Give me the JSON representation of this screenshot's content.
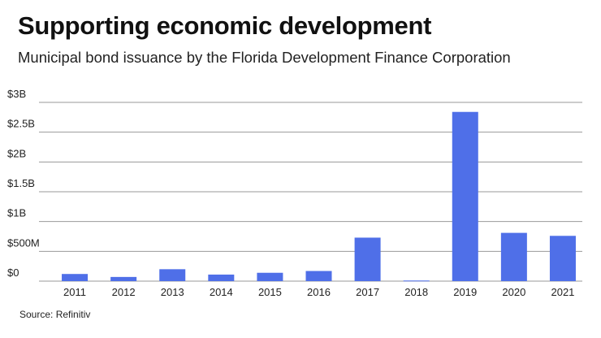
{
  "chart_data": {
    "type": "bar",
    "title": "Supporting economic development",
    "subtitle": "Municipal bond issuance by the Florida Development Finance Corporation",
    "source": "Source: Refinitiv",
    "categories": [
      "2011",
      "2012",
      "2013",
      "2014",
      "2015",
      "2016",
      "2017",
      "2018",
      "2019",
      "2020",
      "2021"
    ],
    "values": [
      0.12,
      0.07,
      0.2,
      0.11,
      0.14,
      0.17,
      0.73,
      0.01,
      2.84,
      0.81,
      0.76
    ],
    "unit": "billions USD",
    "ylim": [
      0,
      3
    ],
    "yticks": [
      0,
      0.5,
      1,
      1.5,
      2,
      2.5,
      3
    ],
    "ytick_labels": [
      "$0",
      "$500M",
      "$1B",
      "$1.5B",
      "$2B",
      "$2.5B",
      "$3B"
    ],
    "xlabel": "",
    "ylabel": "",
    "grid": true,
    "bar_color": "#4f6fe8",
    "grid_color": "#9a9a9a"
  }
}
